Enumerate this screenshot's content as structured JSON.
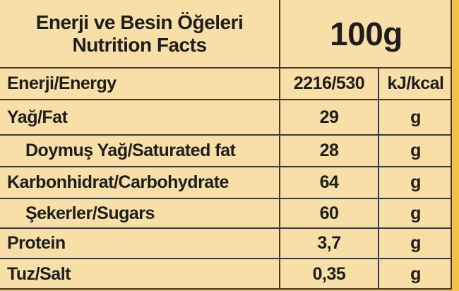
{
  "header": {
    "title_tr": "Enerji ve Besin Öğeleri",
    "title_en": "Nutrition Facts",
    "amount": "100g"
  },
  "table": {
    "rows": [
      [
        "Enerji/Energy",
        "2216/530",
        "kJ/kcal"
      ],
      [
        "Yağ/Fat",
        "29",
        "g"
      ],
      [
        "Doymuş Yağ/Saturated fat",
        "28",
        "g"
      ],
      [
        "Karbonhidrat/Carbohydrate",
        "64",
        "g"
      ],
      [
        "Şekerler/Sugars",
        "60",
        "g"
      ],
      [
        "Protein",
        "3,7",
        "g"
      ],
      [
        "Tuz/Salt",
        "0,35",
        "g"
      ]
    ]
  }
}
